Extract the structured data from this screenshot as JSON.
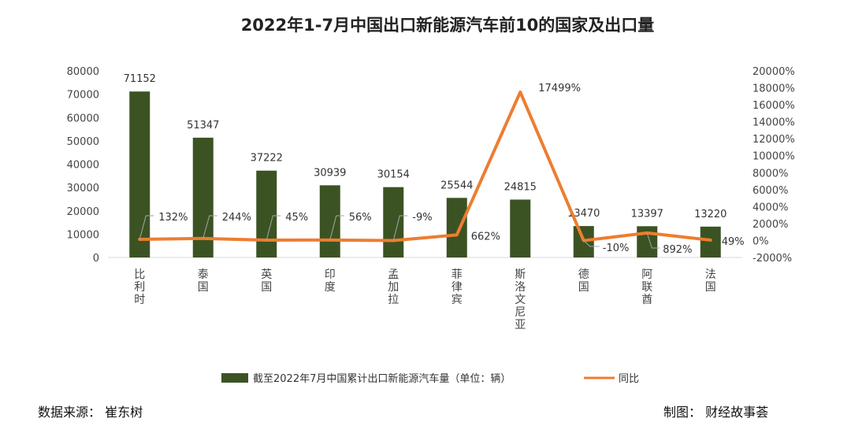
{
  "chart_data": {
    "type": "bar+line",
    "title": "2022年1-7月中国出口新能源汽车前10的国家及出口量",
    "categories": [
      "比利时",
      "泰国",
      "英国",
      "印度",
      "孟加拉",
      "菲律宾",
      "斯洛文尼亚",
      "德国",
      "阿联酋",
      "法国"
    ],
    "series": [
      {
        "name": "截至2022年7月中国累计出口新能源汽车量（单位：辆）",
        "type": "bar",
        "axis": "left",
        "color": "#3b5323",
        "values": [
          71152,
          51347,
          37222,
          30939,
          30154,
          25544,
          24815,
          13470,
          13397,
          13220
        ],
        "labels": [
          "71152",
          "51347",
          "37222",
          "30939",
          "30154",
          "25544",
          "24815",
          "13470",
          "13397",
          "13220"
        ]
      },
      {
        "name": "同比",
        "type": "line",
        "axis": "right",
        "color": "#ed7d31",
        "values": [
          132,
          244,
          45,
          56,
          -9,
          662,
          17499,
          -10,
          892,
          49
        ],
        "labels": [
          "132%",
          "244%",
          "45%",
          "56%",
          "-9%",
          "662%",
          "17499%",
          "-10%",
          "892%",
          "49%"
        ]
      }
    ],
    "y_left": {
      "min": 0,
      "max": 80000,
      "step": 10000,
      "ticks": [
        "0",
        "10000",
        "20000",
        "30000",
        "40000",
        "50000",
        "60000",
        "70000",
        "80000"
      ]
    },
    "y_right": {
      "min": -2000,
      "max": 20000,
      "step": 2000,
      "ticks": [
        "-2000%",
        "0%",
        "2000%",
        "4000%",
        "6000%",
        "8000%",
        "10000%",
        "12000%",
        "14000%",
        "16000%",
        "18000%",
        "20000%"
      ]
    },
    "grid": false,
    "legend_position": "bottom"
  },
  "footer": {
    "source": "数据来源：  崔东树",
    "credit": "制图：  财经故事荟"
  }
}
